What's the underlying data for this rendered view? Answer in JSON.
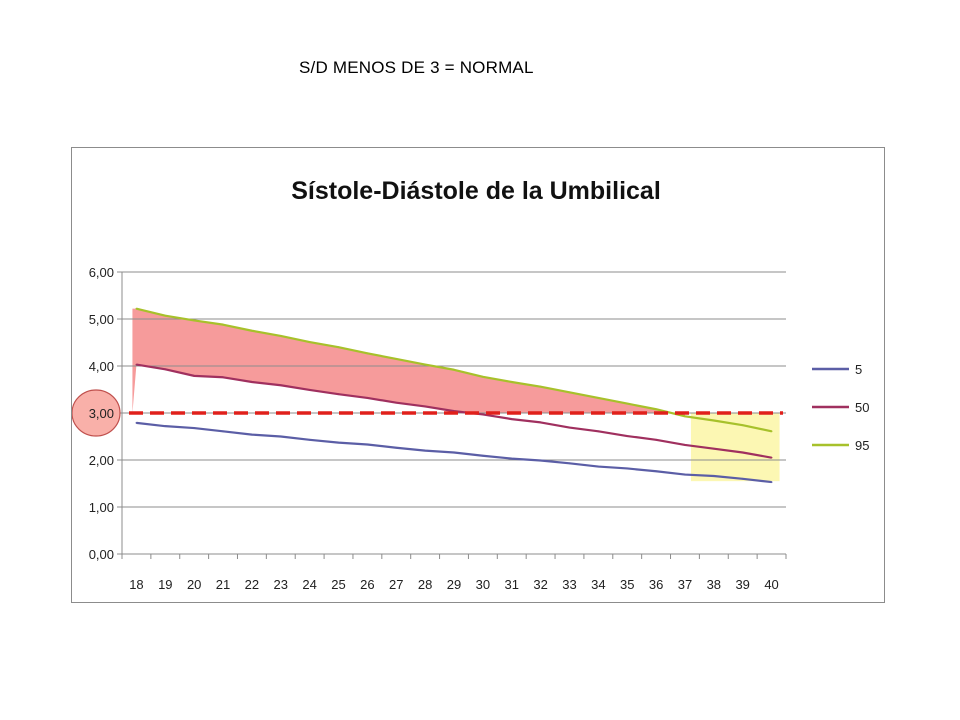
{
  "header": {
    "note": "S/D MENOS DE 3 = NORMAL"
  },
  "colors": {
    "series_5": "#5b5ea6",
    "series_50": "#a0305f",
    "series_95": "#a7c12b",
    "threshold_line": "#e0201b",
    "highlight_fill": "#f58a8a",
    "term_box_fill": "#fbf6a6",
    "circle_fill": "#f9b0a9",
    "circle_stroke": "#c0504d",
    "grid": "#8c8c8c"
  },
  "chart_data": {
    "type": "line",
    "title": "Sístole-Diástole de la Umbilical",
    "xlabel": "",
    "ylabel": "",
    "x": [
      "18",
      "19",
      "20",
      "21",
      "22",
      "23",
      "24",
      "25",
      "26",
      "27",
      "28",
      "29",
      "30",
      "31",
      "32",
      "33",
      "34",
      "35",
      "36",
      "37",
      "38",
      "39",
      "40"
    ],
    "y_ticks": [
      "0,00",
      "1,00",
      "2,00",
      "3,00",
      "4,00",
      "5,00",
      "6,00"
    ],
    "ylim": [
      0,
      6
    ],
    "grid": true,
    "legend_position": "right",
    "series": [
      {
        "name": "5",
        "color_key": "series_5",
        "values": [
          2.79,
          2.72,
          2.68,
          2.61,
          2.54,
          2.5,
          2.43,
          2.37,
          2.33,
          2.26,
          2.2,
          2.16,
          2.09,
          2.03,
          1.99,
          1.93,
          1.86,
          1.82,
          1.76,
          1.69,
          1.66,
          1.6,
          1.53
        ]
      },
      {
        "name": "50",
        "color_key": "series_50",
        "values": [
          4.03,
          3.93,
          3.79,
          3.76,
          3.66,
          3.59,
          3.49,
          3.4,
          3.32,
          3.22,
          3.14,
          3.04,
          2.97,
          2.87,
          2.8,
          2.69,
          2.61,
          2.51,
          2.43,
          2.32,
          2.24,
          2.16,
          2.05
        ]
      },
      {
        "name": "95",
        "color_key": "series_95",
        "values": [
          5.22,
          5.07,
          4.97,
          4.88,
          4.75,
          4.64,
          4.51,
          4.4,
          4.27,
          4.15,
          4.03,
          3.92,
          3.77,
          3.66,
          3.56,
          3.44,
          3.32,
          3.2,
          3.08,
          2.93,
          2.84,
          2.74,
          2.61
        ]
      }
    ],
    "annotations": {
      "threshold_value": 3,
      "shaded_above_threshold_between_50_and_95": true,
      "term_range_highlight": [
        "37",
        "40"
      ],
      "highlighted_tick": "3,00"
    }
  }
}
